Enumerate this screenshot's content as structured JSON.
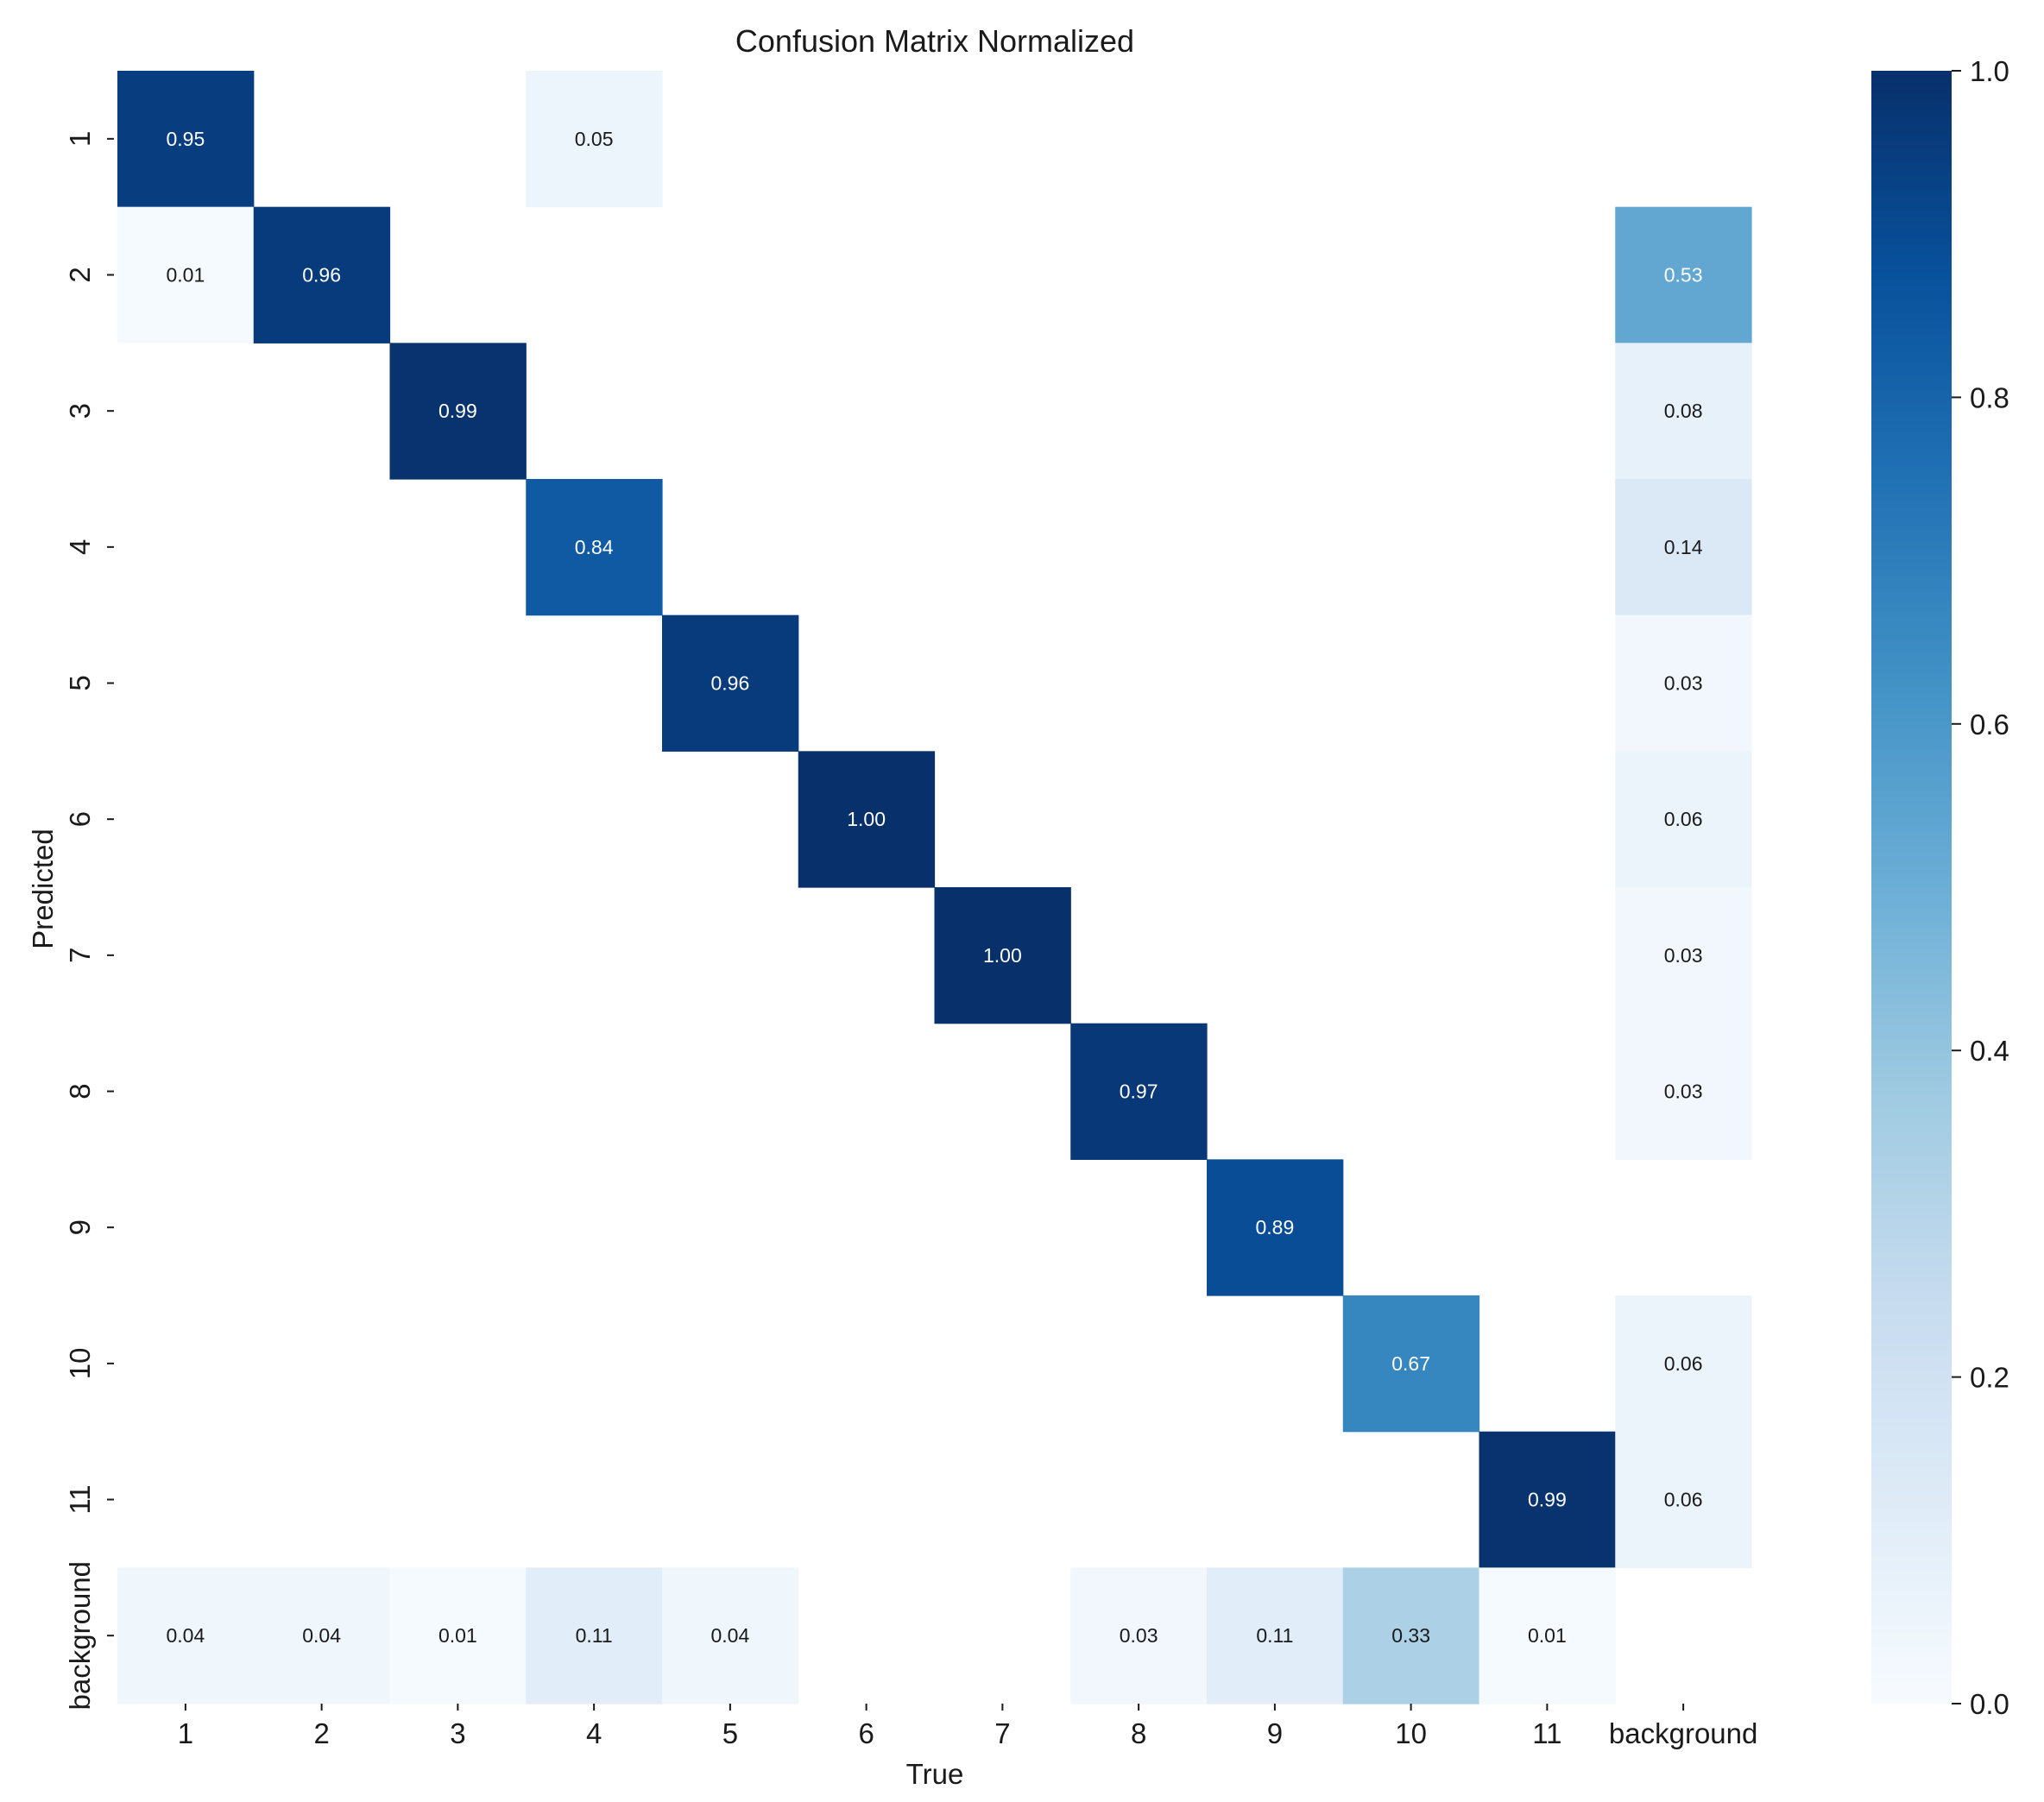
{
  "chart_data": {
    "type": "heatmap",
    "title": "Confusion Matrix Normalized",
    "xlabel": "True",
    "ylabel": "Predicted",
    "x_categories": [
      "1",
      "2",
      "3",
      "4",
      "5",
      "6",
      "7",
      "8",
      "9",
      "10",
      "11",
      "background"
    ],
    "y_categories": [
      "1",
      "2",
      "3",
      "4",
      "5",
      "6",
      "7",
      "8",
      "9",
      "10",
      "11",
      "background"
    ],
    "values": [
      [
        0.95,
        null,
        null,
        0.05,
        null,
        null,
        null,
        null,
        null,
        null,
        null,
        null
      ],
      [
        0.01,
        0.96,
        null,
        null,
        null,
        null,
        null,
        null,
        null,
        null,
        null,
        0.53
      ],
      [
        null,
        null,
        0.99,
        null,
        null,
        null,
        null,
        null,
        null,
        null,
        null,
        0.08
      ],
      [
        null,
        null,
        null,
        0.84,
        null,
        null,
        null,
        null,
        null,
        null,
        null,
        0.14
      ],
      [
        null,
        null,
        null,
        null,
        0.96,
        null,
        null,
        null,
        null,
        null,
        null,
        0.03
      ],
      [
        null,
        null,
        null,
        null,
        null,
        1.0,
        null,
        null,
        null,
        null,
        null,
        0.06
      ],
      [
        null,
        null,
        null,
        null,
        null,
        null,
        1.0,
        null,
        null,
        null,
        null,
        0.03
      ],
      [
        null,
        null,
        null,
        null,
        null,
        null,
        null,
        0.97,
        null,
        null,
        null,
        0.03
      ],
      [
        null,
        null,
        null,
        null,
        null,
        null,
        null,
        null,
        0.89,
        null,
        null,
        null
      ],
      [
        null,
        null,
        null,
        null,
        null,
        null,
        null,
        null,
        null,
        0.67,
        null,
        0.06
      ],
      [
        null,
        null,
        null,
        null,
        null,
        null,
        null,
        null,
        null,
        null,
        0.99,
        0.06
      ],
      [
        0.04,
        0.04,
        0.01,
        0.11,
        0.04,
        null,
        null,
        0.03,
        0.11,
        0.33,
        0.01,
        null
      ]
    ],
    "colormap": "Blues",
    "colorbar": {
      "range": [
        0.0,
        1.0
      ],
      "ticks": [
        "0.0",
        "0.2",
        "0.4",
        "0.6",
        "0.8",
        "1.0"
      ]
    }
  }
}
